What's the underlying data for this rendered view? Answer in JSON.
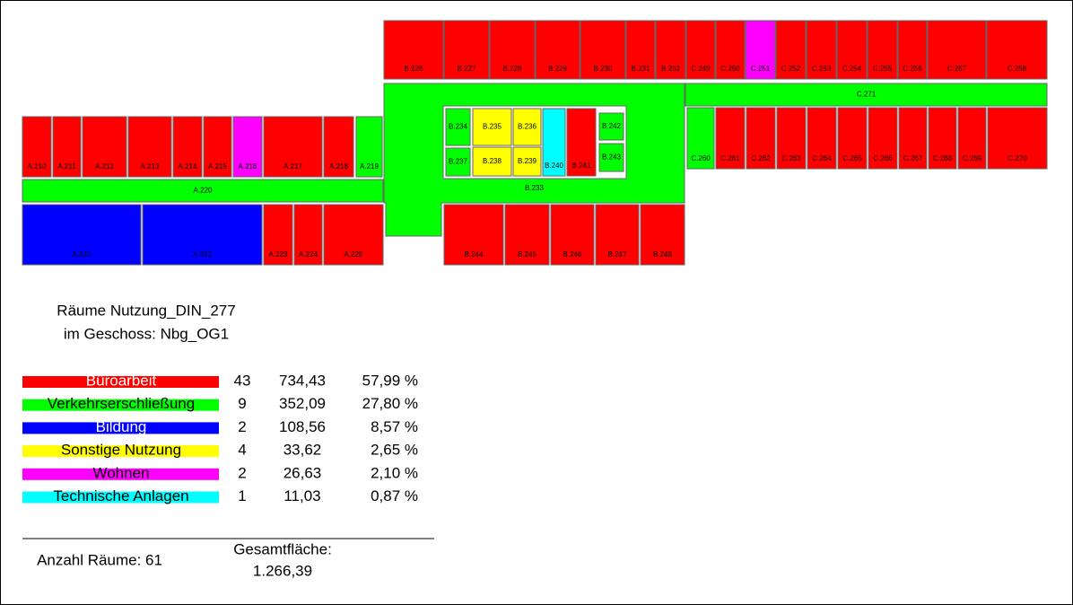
{
  "rooms": [
    "B.226",
    "B.227",
    "B.228",
    "B.229",
    "B.230",
    "B.231",
    "B.232",
    "C.249",
    "C.250",
    "C.251",
    "C.252",
    "C.253",
    "C.254",
    "C.255",
    "C.256",
    "C.257",
    "C.258",
    "C.271",
    "C.260",
    "C.261",
    "C.262",
    "C.263",
    "C.264",
    "C.265",
    "C.266",
    "C.267",
    "C.268",
    "C.269",
    "C.270",
    "B.233",
    "B.234",
    "B.237",
    "B.235",
    "B.236",
    "B.238",
    "B.239",
    "B.240",
    "B.241",
    "B.242",
    "B.243",
    "B.244",
    "B.245",
    "B.246",
    "B.247",
    "B.248",
    "A.210",
    "A.211",
    "A.212",
    "A.213",
    "A.214",
    "A.215",
    "A.216",
    "A.217",
    "A.218",
    "A.219",
    "A.220",
    "A.221",
    "A.222",
    "A.223",
    "A.224",
    "A.225"
  ],
  "legend": {
    "title": [
      "Räume Nutzung_DIN_277",
      "im Geschoss: Nbg_OG1"
    ],
    "rows": [
      {
        "name": "Büroarbeit",
        "color": "#ff0000",
        "count": 43,
        "area": "734,43",
        "share": "57,99 %"
      },
      {
        "name": "Verkehrserschließung",
        "color": "#00ff00",
        "count": 9,
        "area": "352,09",
        "share": "27,80 %"
      },
      {
        "name": "Bildung",
        "color": "#0000ff",
        "count": 2,
        "area": "108,56",
        "share": "8,57 %"
      },
      {
        "name": "Sonstige Nutzung",
        "color": "#ffff00",
        "count": 4,
        "area": "33,62",
        "share": "2,65 %"
      },
      {
        "name": "Wohnen",
        "color": "#ff00ff",
        "count": 2,
        "area": "26,63",
        "share": "2,10 %"
      },
      {
        "name": "Technische Anlagen",
        "color": "#00ffff",
        "count": 1,
        "area": "11,03",
        "share": "0,87 %"
      }
    ]
  },
  "footer": {
    "rooms_count": "Anzahl Räume: 61",
    "total_label": "Gesamtfläche:",
    "total_value": "1.266,39"
  }
}
